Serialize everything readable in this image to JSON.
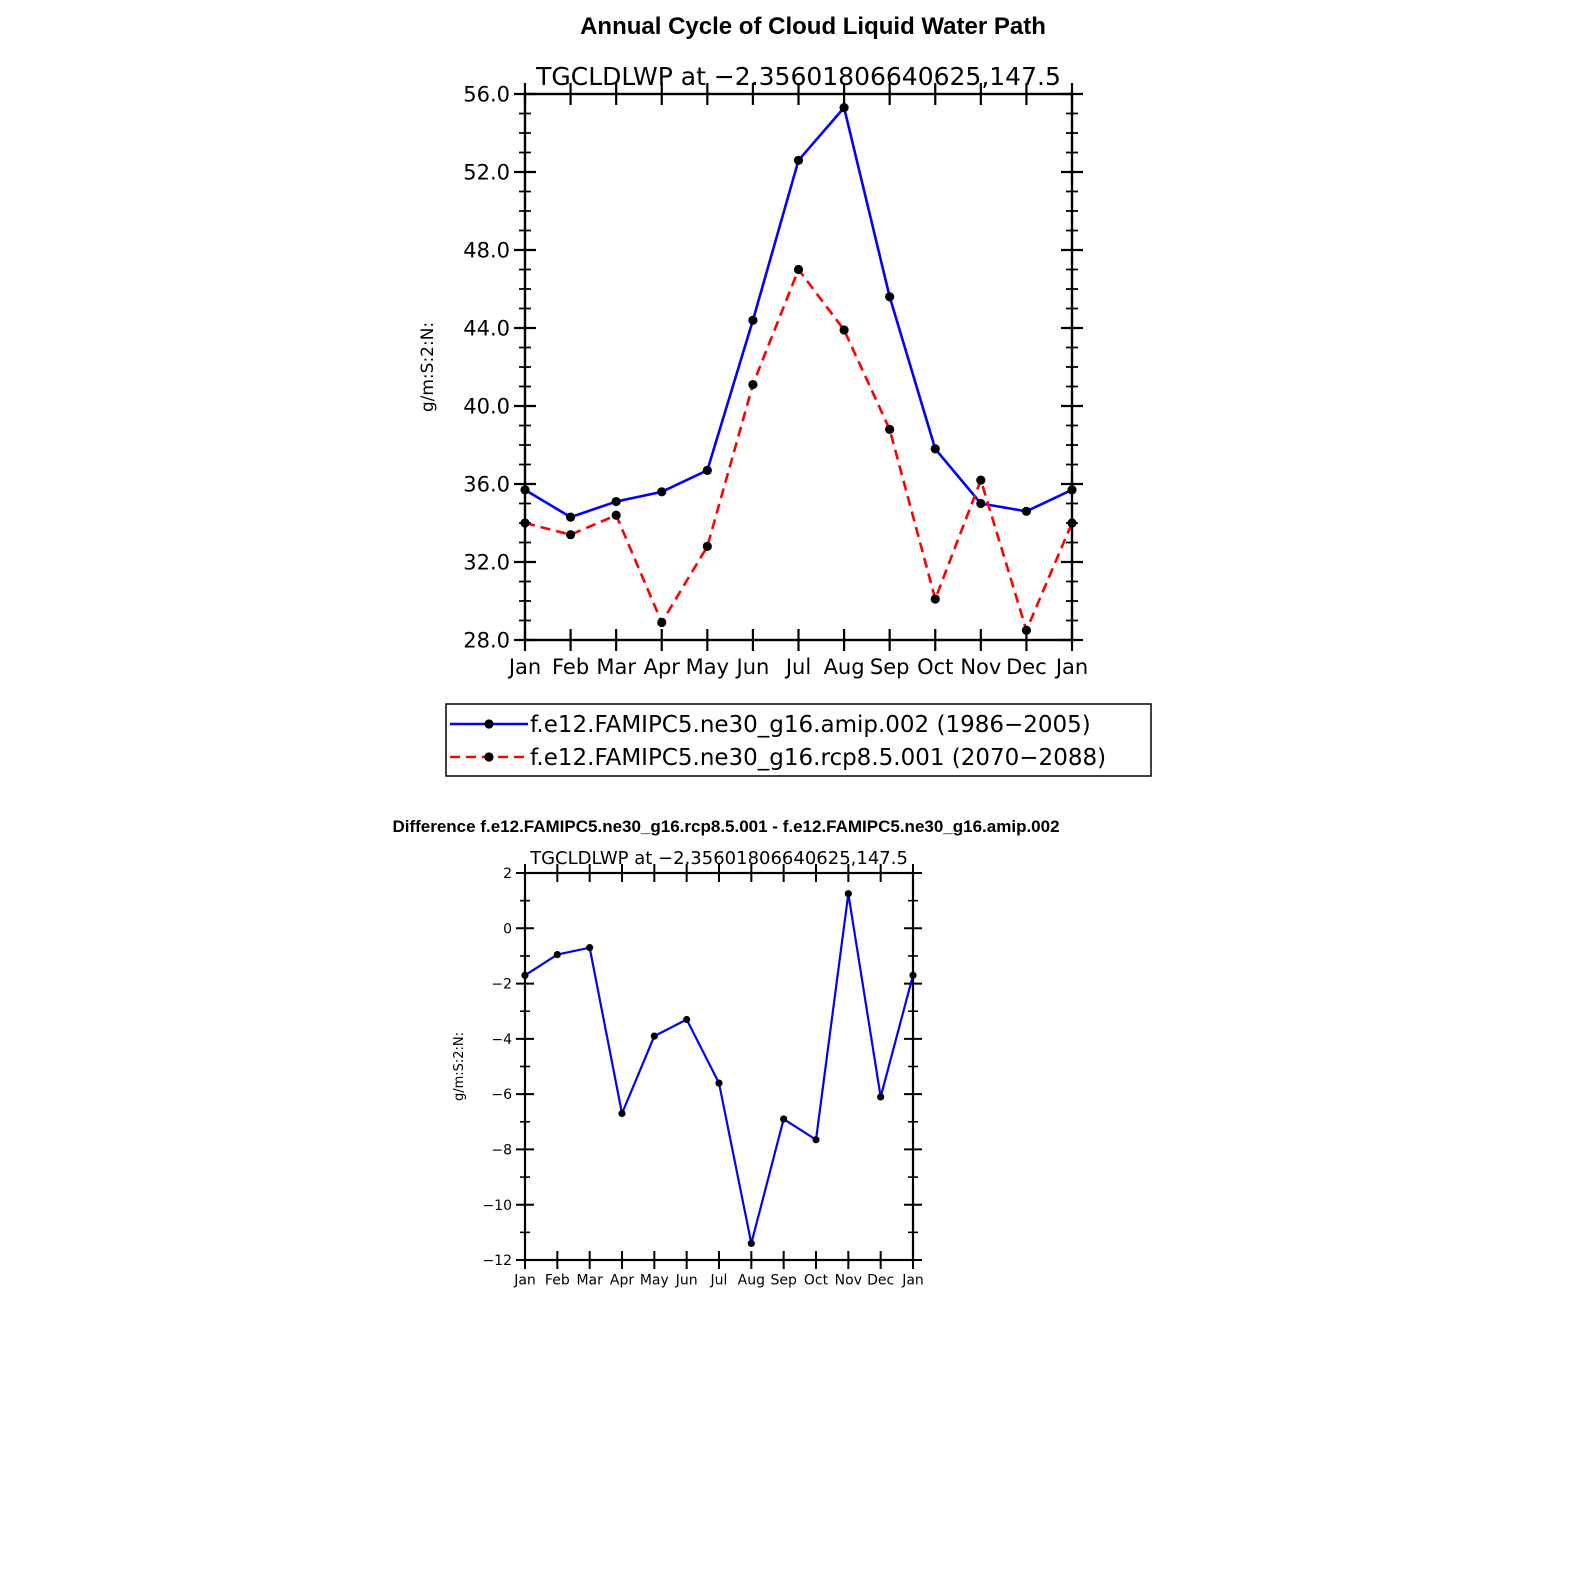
{
  "figure": {
    "title": "Annual Cycle of Cloud Liquid Water Path",
    "diff_title": "Difference f.e12.FAMIPC5.ne30_g16.rcp8.5.001 - f.e12.FAMIPC5.ne30_g16.amip.002"
  },
  "colors": {
    "amip": "#0000ff",
    "rcp": "#ff0000",
    "marker": "#000000",
    "diff": "#0000ff"
  },
  "chart_data": [
    {
      "type": "line",
      "title": "Annual Cycle of Cloud Liquid Water Path",
      "subtitle": "TGCLDLWP  at  −2.35601806640625,147.5",
      "ylabel": "g/m:S:2:N:",
      "xlabel": "",
      "categories": [
        "Jan",
        "Feb",
        "Mar",
        "Apr",
        "May",
        "Jun",
        "Jul",
        "Aug",
        "Sep",
        "Oct",
        "Nov",
        "Dec",
        "Jan"
      ],
      "ylim": [
        28,
        56
      ],
      "yticks": [
        "28.0",
        "32.0",
        "36.0",
        "40.0",
        "44.0",
        "48.0",
        "52.0",
        "56.0"
      ],
      "grid": false,
      "legend": "bottom",
      "series": [
        {
          "name": "f.e12.FAMIPC5.ne30_g16.amip.002 (1986−2005)",
          "style": "solid",
          "values": [
            35.7,
            34.3,
            35.1,
            35.6,
            36.7,
            44.4,
            52.6,
            55.3,
            45.6,
            37.8,
            35.0,
            34.6,
            35.7
          ]
        },
        {
          "name": "f.e12.FAMIPC5.ne30_g16.rcp8.5.001 (2070−2088)",
          "style": "dashed",
          "values": [
            34.0,
            33.4,
            34.4,
            28.9,
            32.8,
            41.1,
            47.0,
            43.9,
            38.8,
            30.1,
            36.2,
            28.5,
            34.0
          ]
        }
      ]
    },
    {
      "type": "line",
      "title": "Difference f.e12.FAMIPC5.ne30_g16.rcp8.5.001 - f.e12.FAMIPC5.ne30_g16.amip.002",
      "subtitle": "TGCLDLWP  at  −2.35601806640625,147.5",
      "ylabel": "g/m:S:2:N:",
      "xlabel": "",
      "categories": [
        "Jan",
        "Feb",
        "Mar",
        "Apr",
        "May",
        "Jun",
        "Jul",
        "Aug",
        "Sep",
        "Oct",
        "Nov",
        "Dec",
        "Jan"
      ],
      "ylim": [
        -12,
        2
      ],
      "yticks": [
        "−12",
        "−10",
        "−8",
        "−6",
        "−4",
        "−2",
        "0",
        "2"
      ],
      "grid": false,
      "series": [
        {
          "name": "",
          "style": "solid",
          "values": [
            -1.7,
            -0.95,
            -0.7,
            -6.7,
            -3.9,
            -3.3,
            -5.6,
            -11.4,
            -6.9,
            -7.65,
            1.25,
            -6.1,
            -1.7
          ]
        }
      ]
    }
  ]
}
